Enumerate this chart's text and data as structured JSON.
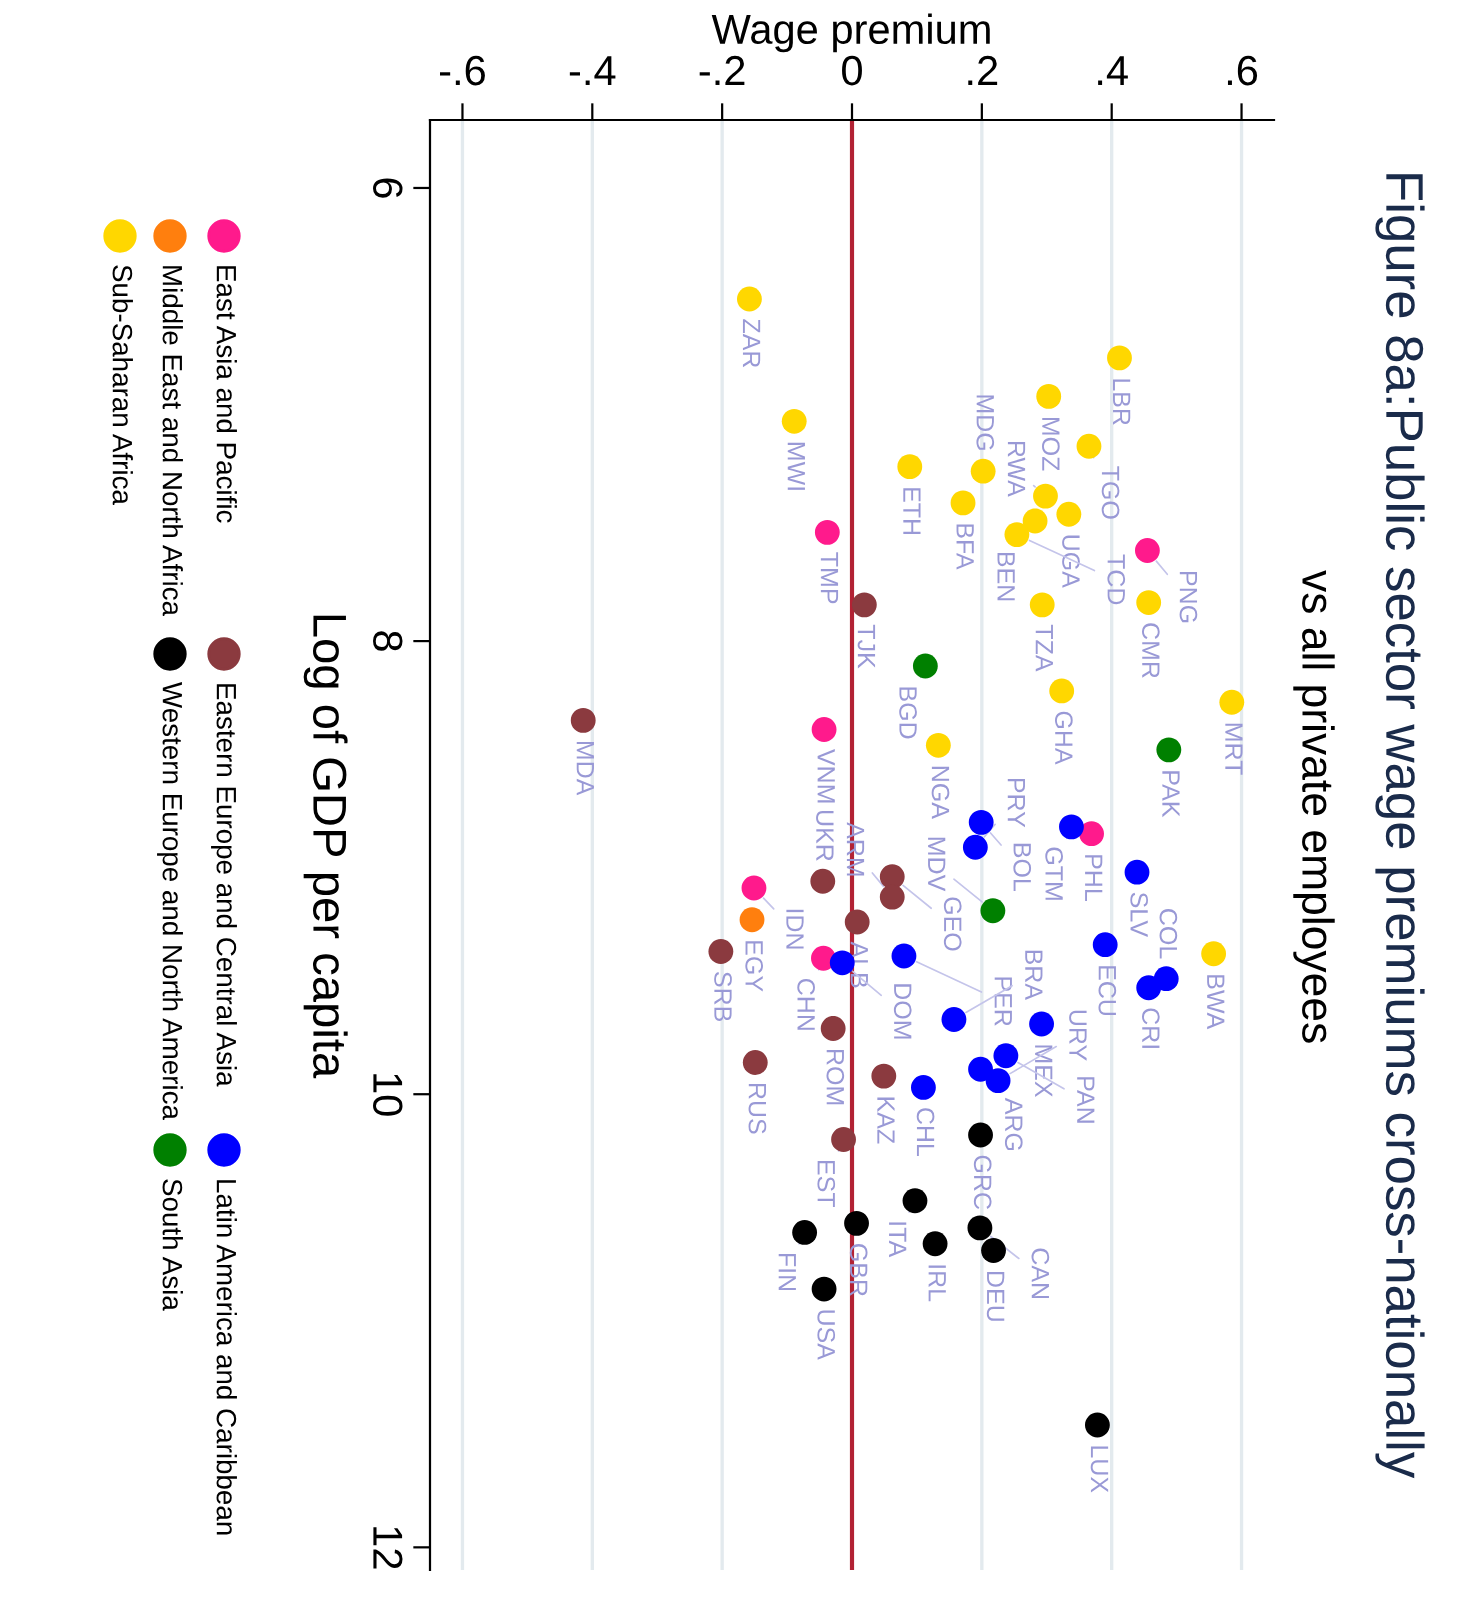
{
  "chart_data": {
    "type": "scatter",
    "title": "Figure 8a:Public sector wage premiums cross-nationally",
    "subtitle": "vs all private employees",
    "xlabel": "Wage premium",
    "ylabel": "Log of GDP per capita",
    "xlim": [
      -0.65,
      0.65
    ],
    "xticks": [
      {
        "value": -0.6,
        "label": "-.6"
      },
      {
        "value": -0.4,
        "label": "-.4"
      },
      {
        "value": -0.2,
        "label": "-.2"
      },
      {
        "value": 0,
        "label": "0"
      },
      {
        "value": 0.2,
        "label": ".2"
      },
      {
        "value": 0.4,
        "label": ".4"
      },
      {
        "value": 0.6,
        "label": ".6"
      }
    ],
    "ylim": [
      12.1,
      5.7
    ],
    "yticks": [
      6,
      8,
      10,
      12
    ],
    "grid": "x",
    "legend": "left",
    "marker": "circle",
    "ref_lines": [
      {
        "axis": "x",
        "value": 0,
        "color": "#b22234"
      }
    ],
    "series": [
      {
        "name": "East Asia and Pacific",
        "color": "#ff1a8c",
        "x": [
          -0.038,
          0.455,
          -0.043,
          0.369,
          -0.151,
          -0.044
        ],
        "values": [
          7.52,
          7.6,
          8.39,
          8.85,
          9.09,
          9.4
        ]
      },
      {
        "name": "Middle East and North Africa",
        "color": "#ff7f0e",
        "x": [
          -0.154
        ],
        "values": [
          9.23
        ]
      },
      {
        "name": "Sub-Saharan Africa",
        "color": "#ffd700",
        "x": [
          -0.158,
          0.412,
          0.303,
          -0.089,
          0.365,
          0.089,
          0.202,
          0.171,
          0.298,
          0.334,
          0.282,
          0.254,
          0.457,
          0.293,
          0.323,
          0.585,
          0.133,
          0.557
        ],
        "values": [
          6.49,
          6.75,
          6.92,
          7.03,
          7.14,
          7.23,
          7.25,
          7.39,
          7.36,
          7.44,
          7.47,
          7.53,
          7.83,
          7.84,
          8.22,
          8.27,
          8.46,
          9.38
        ]
      },
      {
        "name": "Eastern Europe and Central Asia",
        "color": "#8b3a3f",
        "x": [
          0.019,
          -0.414,
          0.062,
          0.062,
          -0.045,
          0.008,
          -0.202,
          -0.029,
          -0.149,
          0.049,
          -0.013
        ],
        "values": [
          7.84,
          8.35,
          9.04,
          9.13,
          9.06,
          9.24,
          9.37,
          9.71,
          9.86,
          9.92,
          10.2
        ]
      },
      {
        "name": "Western Europe and North America",
        "color": "#000000",
        "x": [
          0.198,
          0.097,
          0.007,
          -0.073,
          0.197,
          0.128,
          0.218,
          -0.043,
          0.378
        ],
        "values": [
          10.18,
          10.47,
          10.57,
          10.61,
          10.59,
          10.66,
          10.69,
          10.86,
          11.46
        ]
      },
      {
        "name": "Latin America and Caribbean",
        "color": "#0000ff",
        "x": [
          0.199,
          0.19,
          0.338,
          0.439,
          -0.015,
          0.08,
          0.39,
          0.484,
          0.457,
          0.157,
          0.292,
          0.237,
          0.198,
          0.225,
          0.11
        ],
        "values": [
          8.8,
          8.91,
          8.82,
          9.02,
          9.42,
          9.39,
          9.34,
          9.49,
          9.53,
          9.67,
          9.69,
          9.83,
          9.89,
          9.94,
          9.97
        ]
      },
      {
        "name": "South Asia",
        "color": "#008000",
        "x": [
          0.113,
          0.488,
          0.217
        ],
        "values": [
          8.11,
          8.48,
          9.19
        ]
      }
    ],
    "annotations": [
      {
        "text": "TMP",
        "x": -0.038,
        "y": 7.52
      },
      {
        "text": "PNG",
        "x": 0.455,
        "y": 7.6
      },
      {
        "text": "VNM",
        "x": -0.043,
        "y": 8.39
      },
      {
        "text": "PHL",
        "x": 0.369,
        "y": 8.85
      },
      {
        "text": "IDN",
        "x": -0.151,
        "y": 9.09
      },
      {
        "text": "CHN",
        "x": -0.044,
        "y": 9.4
      },
      {
        "text": "EGY",
        "x": -0.154,
        "y": 9.23
      },
      {
        "text": "ZAR",
        "x": -0.158,
        "y": 6.49
      },
      {
        "text": "LBR",
        "x": 0.412,
        "y": 6.75
      },
      {
        "text": "MOZ",
        "x": 0.303,
        "y": 6.92
      },
      {
        "text": "MWI",
        "x": -0.089,
        "y": 7.03
      },
      {
        "text": "TGO",
        "x": 0.365,
        "y": 7.14
      },
      {
        "text": "ETH",
        "x": 0.089,
        "y": 7.23
      },
      {
        "text": "MDG",
        "x": 0.202,
        "y": 7.25
      },
      {
        "text": "BFA",
        "x": 0.171,
        "y": 7.39
      },
      {
        "text": "RWA",
        "x": 0.298,
        "y": 7.36
      },
      {
        "text": "UGA",
        "x": 0.334,
        "y": 7.44
      },
      {
        "text": "BEN",
        "x": 0.282,
        "y": 7.47
      },
      {
        "text": "TCD",
        "x": 0.254,
        "y": 7.53
      },
      {
        "text": "CMR",
        "x": 0.457,
        "y": 7.83
      },
      {
        "text": "TZA",
        "x": 0.293,
        "y": 7.84
      },
      {
        "text": "GHA",
        "x": 0.323,
        "y": 8.22
      },
      {
        "text": "MRT",
        "x": 0.585,
        "y": 8.27
      },
      {
        "text": "NGA",
        "x": 0.133,
        "y": 8.46
      },
      {
        "text": "BWA",
        "x": 0.557,
        "y": 9.38
      },
      {
        "text": "TJK",
        "x": 0.019,
        "y": 7.84
      },
      {
        "text": "MDA",
        "x": -0.414,
        "y": 8.35
      },
      {
        "text": "GEO",
        "x": 0.062,
        "y": 9.04
      },
      {
        "text": "ARM",
        "x": 0.062,
        "y": 9.13
      },
      {
        "text": "UKR",
        "x": -0.045,
        "y": 9.06
      },
      {
        "text": "ALB",
        "x": 0.008,
        "y": 9.24
      },
      {
        "text": "SRB",
        "x": -0.202,
        "y": 9.37
      },
      {
        "text": "ROM",
        "x": -0.029,
        "y": 9.71
      },
      {
        "text": "RUS",
        "x": -0.149,
        "y": 9.86
      },
      {
        "text": "KAZ",
        "x": 0.049,
        "y": 9.92
      },
      {
        "text": "EST",
        "x": -0.013,
        "y": 10.2
      },
      {
        "text": "GRC",
        "x": 0.198,
        "y": 10.18
      },
      {
        "text": "ITA",
        "x": 0.097,
        "y": 10.47
      },
      {
        "text": "GBR",
        "x": 0.007,
        "y": 10.57
      },
      {
        "text": "FIN",
        "x": -0.073,
        "y": 10.61
      },
      {
        "text": "CAN",
        "x": 0.197,
        "y": 10.59
      },
      {
        "text": "IRL",
        "x": 0.128,
        "y": 10.66
      },
      {
        "text": "DEU",
        "x": 0.218,
        "y": 10.69
      },
      {
        "text": "USA",
        "x": -0.043,
        "y": 10.86
      },
      {
        "text": "LUX",
        "x": 0.378,
        "y": 11.46
      },
      {
        "text": "BOL",
        "x": 0.199,
        "y": 8.8
      },
      {
        "text": "PRY",
        "x": 0.19,
        "y": 8.91
      },
      {
        "text": "GTM",
        "x": 0.338,
        "y": 8.82
      },
      {
        "text": "SLV",
        "x": 0.439,
        "y": 9.02
      },
      {
        "text": "DOM",
        "x": -0.015,
        "y": 9.42
      },
      {
        "text": "PER",
        "x": 0.08,
        "y": 9.39
      },
      {
        "text": "ECU",
        "x": 0.39,
        "y": 9.34
      },
      {
        "text": "COL",
        "x": 0.484,
        "y": 9.49
      },
      {
        "text": "CRI",
        "x": 0.457,
        "y": 9.53
      },
      {
        "text": "BRA",
        "x": 0.157,
        "y": 9.67
      },
      {
        "text": "MEX",
        "x": 0.292,
        "y": 9.69
      },
      {
        "text": "PAN",
        "x": 0.237,
        "y": 9.83
      },
      {
        "text": "ARG",
        "x": 0.198,
        "y": 9.89
      },
      {
        "text": "URY",
        "x": 0.225,
        "y": 9.94
      },
      {
        "text": "CHL",
        "x": 0.11,
        "y": 9.97
      },
      {
        "text": "BGD",
        "x": 0.113,
        "y": 8.11
      },
      {
        "text": "PAK",
        "x": 0.488,
        "y": 8.48
      },
      {
        "text": "MDV",
        "x": 0.217,
        "y": 9.19
      }
    ]
  }
}
